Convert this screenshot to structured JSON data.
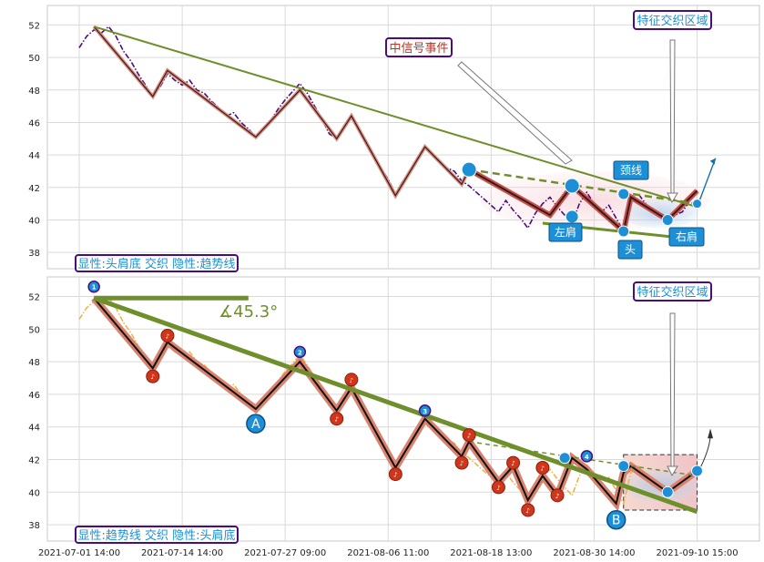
{
  "chart_data": [
    {
      "type": "line",
      "panel": "top",
      "ylim": [
        37,
        53.2
      ],
      "yticks": [
        38,
        40,
        42,
        44,
        46,
        48,
        50,
        52
      ],
      "grid": true,
      "x_labels": [
        "2021-07-01 14:00",
        "2021-07-14 14:00",
        "2021-07-27 09:00",
        "2021-08-06 11:00",
        "2021-08-18 13:00",
        "2021-08-30 14:00",
        "2021-09-10 15:00"
      ],
      "annotations": {
        "legend_box": "显性:头肩底 交织 隐性:趋势线",
        "signal_event": "中信号事件",
        "feature_zone": "特征交织区域",
        "neckline": "颈线",
        "left_shoulder": "左肩",
        "head": "头",
        "right_shoulder": "右肩"
      },
      "price": [
        [
          0,
          50.6
        ],
        [
          1,
          51.3
        ],
        [
          2,
          51.7
        ],
        [
          3,
          51.5
        ],
        [
          4,
          51.9
        ],
        [
          5,
          51.3
        ],
        [
          6,
          50.4
        ],
        [
          7,
          49.8
        ],
        [
          8,
          49.0
        ],
        [
          9,
          48.3
        ],
        [
          10,
          47.6
        ],
        [
          11,
          48.2
        ],
        [
          12,
          49.0
        ],
        [
          13,
          48.6
        ],
        [
          14,
          48.3
        ],
        [
          15,
          48.6
        ],
        [
          16,
          48.0
        ],
        [
          17,
          47.8
        ],
        [
          18,
          47.3
        ],
        [
          19,
          46.9
        ],
        [
          20,
          46.4
        ],
        [
          21,
          46.6
        ],
        [
          22,
          46.0
        ],
        [
          23,
          45.6
        ],
        [
          24,
          45.1
        ],
        [
          25,
          45.5
        ],
        [
          26,
          46.1
        ],
        [
          27,
          46.8
        ],
        [
          28,
          47.4
        ],
        [
          29,
          47.9
        ],
        [
          30,
          48.4
        ],
        [
          31,
          47.8
        ],
        [
          32,
          47.0
        ],
        [
          33,
          46.2
        ],
        [
          34,
          45.3
        ],
        [
          35,
          45.0
        ],
        [
          36,
          45.8
        ],
        [
          37,
          46.4
        ],
        [
          38,
          45.6
        ],
        [
          39,
          44.8
        ],
        [
          40,
          44.0
        ],
        [
          41,
          43.2
        ],
        [
          42,
          42.5
        ],
        [
          43,
          41.6
        ],
        [
          44,
          42.4
        ],
        [
          45,
          43.0
        ],
        [
          46,
          43.8
        ],
        [
          47,
          44.5
        ],
        [
          48,
          44.0
        ],
        [
          49,
          43.6
        ],
        [
          50,
          43.2
        ],
        [
          51,
          43.0
        ],
        [
          52,
          42.4
        ],
        [
          53,
          42.1
        ],
        [
          54,
          41.7
        ],
        [
          55,
          41.3
        ],
        [
          56,
          40.9
        ],
        [
          57,
          40.5
        ],
        [
          58,
          41.2
        ],
        [
          59,
          40.6
        ],
        [
          60,
          40.1
        ],
        [
          61,
          39.5
        ],
        [
          62,
          40.4
        ],
        [
          63,
          41.0
        ],
        [
          64,
          41.4
        ],
        [
          65,
          40.8
        ],
        [
          66,
          40.3
        ],
        [
          67,
          39.8
        ],
        [
          68,
          41.0
        ],
        [
          69,
          41.7
        ],
        [
          70,
          41.0
        ],
        [
          71,
          40.5
        ],
        [
          72,
          40.9
        ],
        [
          73,
          40.1
        ],
        [
          74,
          39.3
        ],
        [
          75,
          41.2
        ],
        [
          76,
          41.6
        ],
        [
          77,
          41.0
        ],
        [
          78,
          40.5
        ],
        [
          79,
          40.3
        ],
        [
          80,
          40.0
        ],
        [
          81,
          40.3
        ],
        [
          82,
          40.5
        ],
        [
          83,
          41.2
        ],
        [
          84,
          41.8
        ]
      ],
      "zigzag": [
        [
          2,
          51.9
        ],
        [
          10,
          47.6
        ],
        [
          12,
          49.2
        ],
        [
          24,
          45.1
        ],
        [
          30,
          48.0
        ],
        [
          35,
          45.0
        ],
        [
          37,
          46.4
        ],
        [
          43,
          41.5
        ],
        [
          47,
          44.5
        ],
        [
          52,
          42.2
        ],
        [
          53,
          43.1
        ],
        [
          64,
          40.3
        ],
        [
          67,
          42.1
        ],
        [
          74,
          39.3
        ],
        [
          75,
          41.4
        ],
        [
          80,
          40.0
        ],
        [
          84,
          41.8
        ]
      ],
      "trendline": [
        [
          2,
          51.9
        ],
        [
          84,
          40.8
        ]
      ],
      "support_line": [
        [
          63,
          39.8
        ],
        [
          84,
          38.8
        ]
      ],
      "dashed_line": [
        [
          53,
          43.1
        ],
        [
          84,
          41.0
        ]
      ],
      "key_points": [
        {
          "label": "left_shoulder",
          "x": 67,
          "y": 40.2
        },
        {
          "label": "left_shoulder_top",
          "x": 67,
          "y": 42.1
        },
        {
          "label": "head",
          "x": 74,
          "y": 39.3
        },
        {
          "label": "neckline",
          "x": 74,
          "y": 41.6
        },
        {
          "label": "right_shoulder",
          "x": 80,
          "y": 40.0
        },
        {
          "label": "start",
          "x": 53,
          "y": 43.1
        },
        {
          "label": "end",
          "x": 84,
          "y": 41.0
        }
      ]
    },
    {
      "type": "line",
      "panel": "bottom",
      "ylim": [
        37,
        53.2
      ],
      "yticks": [
        38,
        40,
        42,
        44,
        46,
        48,
        50,
        52
      ],
      "grid": true,
      "angle_label": "∡45.3°",
      "annotations": {
        "legend_box": "显性:趋势线 交织 隐性:头肩底",
        "feature_zone": "特征交织区域",
        "point_a": "A",
        "point_b": "B"
      },
      "numbered_points": [
        {
          "n": "1",
          "x": 2,
          "y": 52.6
        },
        {
          "n": "2",
          "x": 30,
          "y": 48.6
        },
        {
          "n": "3",
          "x": 47,
          "y": 45.0
        },
        {
          "n": "4",
          "x": 69,
          "y": 42.2
        }
      ],
      "trendline": [
        [
          2,
          51.9
        ],
        [
          84,
          38.8
        ]
      ],
      "horizontal_line": [
        [
          2,
          51.9
        ],
        [
          23,
          51.9
        ]
      ],
      "dashed_line": [
        [
          53,
          43.1
        ],
        [
          84,
          41.0
        ]
      ],
      "zigzag": [
        [
          2,
          51.9
        ],
        [
          10,
          47.6
        ],
        [
          12,
          49.2
        ],
        [
          24,
          45.1
        ],
        [
          30,
          48.0
        ],
        [
          35,
          45.0
        ],
        [
          37,
          46.4
        ],
        [
          43,
          41.5
        ],
        [
          47,
          44.5
        ],
        [
          52,
          42.2
        ],
        [
          53,
          43.1
        ],
        [
          57,
          40.6
        ],
        [
          59,
          41.6
        ],
        [
          61,
          39.5
        ],
        [
          63,
          41.0
        ],
        [
          65,
          39.8
        ],
        [
          67,
          42.1
        ],
        [
          69,
          41.4
        ],
        [
          73,
          39.3
        ],
        [
          74,
          41.2
        ],
        [
          75,
          41.6
        ],
        [
          80,
          40.0
        ],
        [
          84,
          41.3
        ]
      ],
      "red_markers": [
        [
          10,
          47.1
        ],
        [
          12,
          49.6
        ],
        [
          35,
          44.5
        ],
        [
          37,
          46.9
        ],
        [
          43,
          41.1
        ],
        [
          52,
          41.8
        ],
        [
          53,
          43.5
        ],
        [
          57,
          40.3
        ],
        [
          59,
          41.8
        ],
        [
          61,
          38.9
        ],
        [
          63,
          41.5
        ],
        [
          65,
          39.8
        ]
      ],
      "blue_markers": [
        [
          66,
          42.1
        ],
        [
          74,
          41.6
        ],
        [
          80,
          40.0
        ],
        [
          84,
          41.3
        ]
      ],
      "label_markers": [
        {
          "n": "A",
          "x": 24,
          "y": 44.2
        },
        {
          "n": "B",
          "x": 73,
          "y": 38.3
        }
      ],
      "zone_rect": [
        74,
        38.9,
        84,
        42.3
      ]
    }
  ]
}
